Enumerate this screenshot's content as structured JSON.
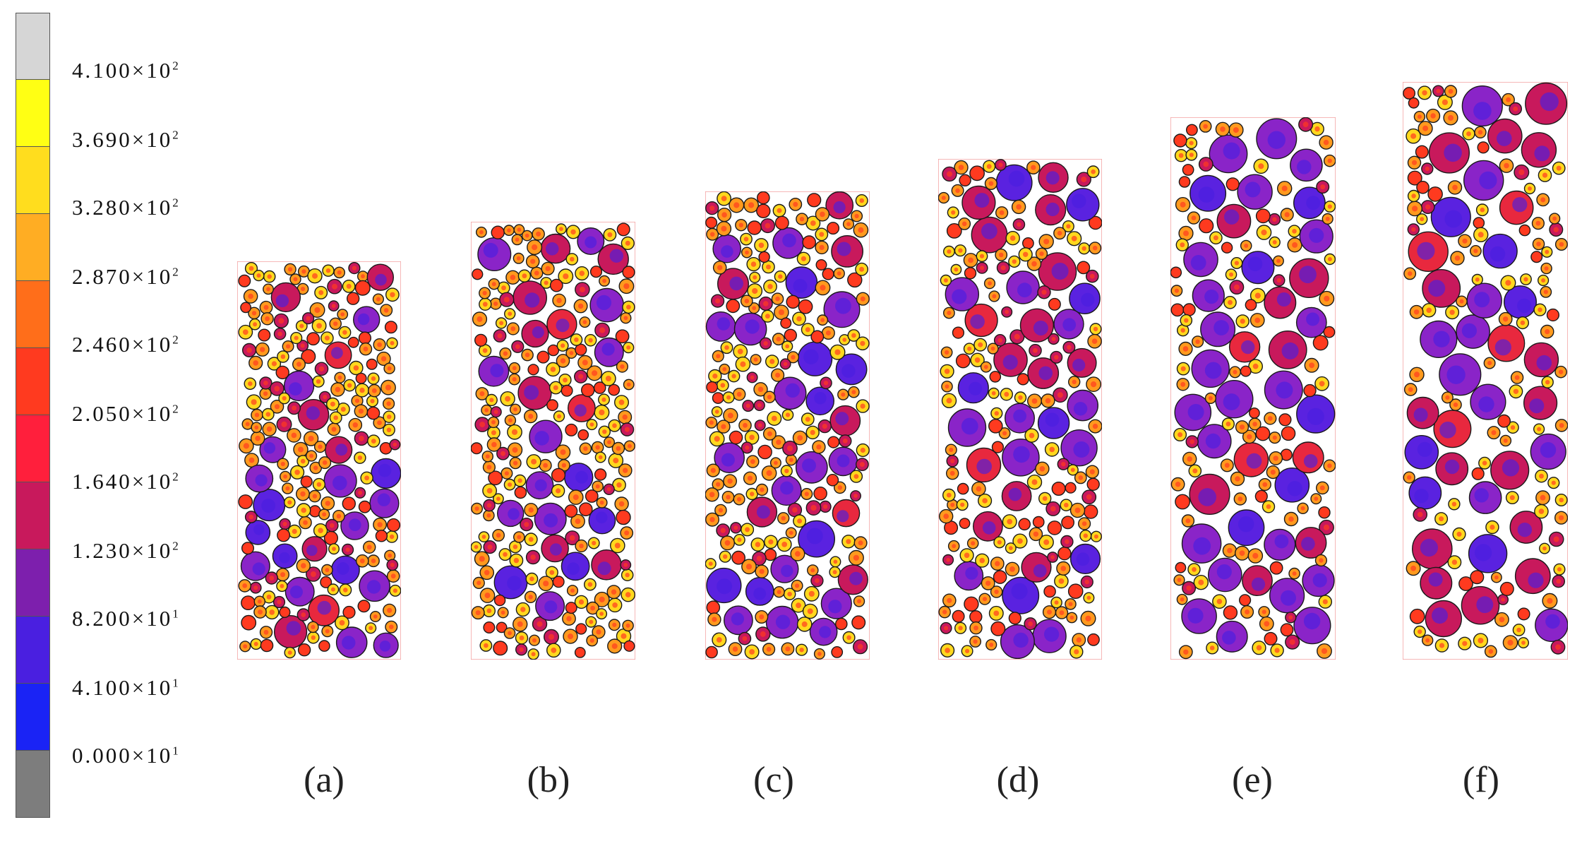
{
  "legend": {
    "colors": [
      "#d6d6d6",
      "#ffff14",
      "#ffdd1e",
      "#ffad23",
      "#ff6e1a",
      "#ff3a1f",
      "#ff1f3c",
      "#c8195c",
      "#7d1fad",
      "#4a1fe0",
      "#1a23f5",
      "#7d7d7d"
    ],
    "labels": [
      {
        "mantissa": "4.100",
        "exp": "2"
      },
      {
        "mantissa": "3.690",
        "exp": "2"
      },
      {
        "mantissa": "3.280",
        "exp": "2"
      },
      {
        "mantissa": "2.870",
        "exp": "2"
      },
      {
        "mantissa": "2.460",
        "exp": "2"
      },
      {
        "mantissa": "2.050",
        "exp": "2"
      },
      {
        "mantissa": "1.640",
        "exp": "2"
      },
      {
        "mantissa": "1.230",
        "exp": "2"
      },
      {
        "mantissa": "8.200",
        "exp": "1"
      },
      {
        "mantissa": "4.100",
        "exp": "1"
      },
      {
        "mantissa": "0.000",
        "exp": "1"
      }
    ],
    "multiply_sign": "×",
    "base": "10"
  },
  "panels": [
    {
      "label": "(a)"
    },
    {
      "label": "(b)"
    },
    {
      "label": "(c)"
    },
    {
      "label": "(d)"
    },
    {
      "label": "(e)"
    },
    {
      "label": "(f)"
    }
  ]
}
